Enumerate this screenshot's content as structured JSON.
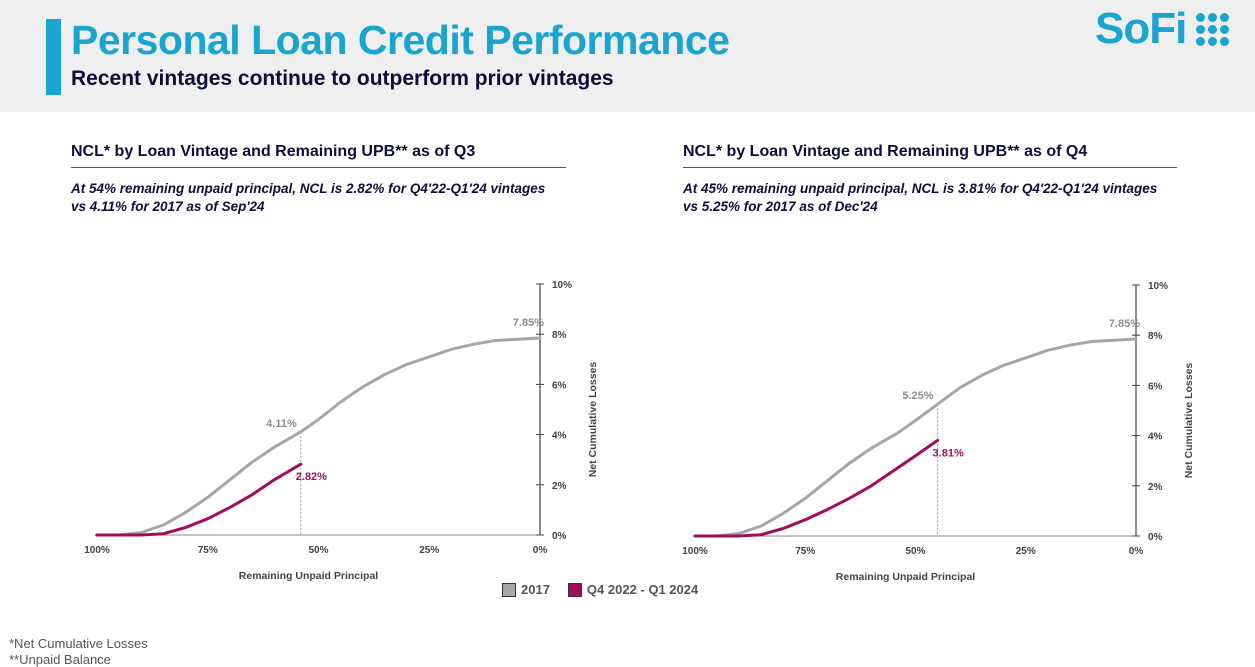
{
  "header": {
    "title": "Personal Loan Credit Performance",
    "subtitle": "Recent vintages continue to outperform prior vintages",
    "logo_text": "SoFi",
    "accent_color": "#1aa5d0"
  },
  "panels": [
    {
      "title": "NCL* by Loan Vintage and Remaining UPB** as of Q3",
      "note_line1": "At 54% remaining unpaid principal, NCL is 2.82% for Q4'22-Q1'24 vintages",
      "note_line2": "vs 4.11% for 2017 as of Sep'24"
    },
    {
      "title": "NCL* by Loan Vintage and Remaining UPB** as of Q4",
      "note_line1": "At 45% remaining unpaid principal, NCL is 3.81% for Q4'22-Q1'24 vintages",
      "note_line2": "vs 5.25% for 2017 as of Dec'24"
    }
  ],
  "chart_data": [
    {
      "type": "line",
      "title": "NCL* by Loan Vintage and Remaining UPB** as of Q3",
      "xlabel": "Remaining Unpaid Principal",
      "ylabel": "Net Cumulative Losses",
      "x_reversed": true,
      "xlim": [
        100,
        0
      ],
      "ylim": [
        0,
        10
      ],
      "xticks": [
        100,
        75,
        50,
        25,
        0
      ],
      "xtick_labels": [
        "100%",
        "75%",
        "50%",
        "25%",
        "0%"
      ],
      "yticks": [
        0,
        2,
        4,
        6,
        8,
        10
      ],
      "ytick_labels": [
        "0%",
        "2%",
        "4%",
        "6%",
        "8%",
        "10%"
      ],
      "series": [
        {
          "name": "2017",
          "color": "#a6a6a6",
          "x": [
            100,
            95,
            90,
            85,
            80,
            75,
            70,
            65,
            60,
            54,
            50,
            45,
            40,
            35,
            30,
            25,
            20,
            15,
            10,
            5,
            0
          ],
          "y": [
            0,
            0,
            0.1,
            0.4,
            0.9,
            1.5,
            2.2,
            2.9,
            3.5,
            4.11,
            4.6,
            5.3,
            5.9,
            6.4,
            6.8,
            7.1,
            7.4,
            7.6,
            7.75,
            7.8,
            7.85
          ]
        },
        {
          "name": "Q4 2022 - Q1 2024",
          "color": "#a10d5e",
          "x": [
            100,
            95,
            90,
            85,
            80,
            75,
            70,
            65,
            60,
            54
          ],
          "y": [
            0,
            0,
            0,
            0.05,
            0.3,
            0.65,
            1.1,
            1.6,
            2.2,
            2.82
          ]
        }
      ],
      "annotations": [
        {
          "label": "7.85%",
          "series": 0,
          "x": 0,
          "y": 7.85
        },
        {
          "label": "4.11%",
          "series": 0,
          "x": 54,
          "y": 4.11
        },
        {
          "label": "2.82%",
          "series": 1,
          "x": 54,
          "y": 2.82
        }
      ],
      "marker_x": 54
    },
    {
      "type": "line",
      "title": "NCL* by Loan Vintage and Remaining UPB** as of Q4",
      "xlabel": "Remaining Unpaid Principal",
      "ylabel": "Net Cumulative Losses",
      "x_reversed": true,
      "xlim": [
        100,
        0
      ],
      "ylim": [
        0,
        10
      ],
      "xticks": [
        100,
        75,
        50,
        25,
        0
      ],
      "xtick_labels": [
        "100%",
        "75%",
        "50%",
        "25%",
        "0%"
      ],
      "yticks": [
        0,
        2,
        4,
        6,
        8,
        10
      ],
      "ytick_labels": [
        "0%",
        "2%",
        "4%",
        "6%",
        "8%",
        "10%"
      ],
      "series": [
        {
          "name": "2017",
          "color": "#a6a6a6",
          "x": [
            100,
            95,
            90,
            85,
            80,
            75,
            70,
            65,
            60,
            54,
            50,
            45,
            40,
            35,
            30,
            25,
            20,
            15,
            10,
            5,
            0
          ],
          "y": [
            0,
            0,
            0.1,
            0.4,
            0.9,
            1.5,
            2.2,
            2.9,
            3.5,
            4.11,
            4.6,
            5.25,
            5.9,
            6.4,
            6.8,
            7.1,
            7.4,
            7.6,
            7.75,
            7.8,
            7.85
          ]
        },
        {
          "name": "Q4 2022 - Q1 2024",
          "color": "#a10d5e",
          "x": [
            100,
            95,
            90,
            85,
            80,
            75,
            70,
            65,
            60,
            55,
            50,
            45
          ],
          "y": [
            0,
            0,
            0,
            0.05,
            0.3,
            0.65,
            1.05,
            1.5,
            2.0,
            2.6,
            3.2,
            3.81
          ]
        }
      ],
      "annotations": [
        {
          "label": "7.85%",
          "series": 0,
          "x": 0,
          "y": 7.85
        },
        {
          "label": "5.25%",
          "series": 0,
          "x": 45,
          "y": 5.25
        },
        {
          "label": "3.81%",
          "series": 1,
          "x": 45,
          "y": 3.81
        }
      ],
      "marker_x": 45
    }
  ],
  "legend": {
    "items": [
      {
        "label": "2017",
        "color": "#a6a6a6"
      },
      {
        "label": "Q4 2022 - Q1 2024",
        "color": "#a10d5e"
      }
    ]
  },
  "footnotes": {
    "ncl": "*Net Cumulative Losses",
    "upb": "**Unpaid Balance"
  }
}
